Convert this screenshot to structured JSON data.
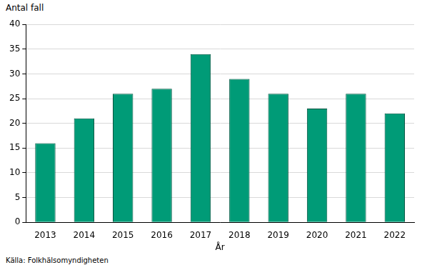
{
  "chart_data": {
    "type": "bar",
    "y_label": "Antal fall",
    "x_label": "År",
    "source": "Källa: Folkhälsomyndigheten",
    "categories": [
      "2013",
      "2014",
      "2015",
      "2016",
      "2017",
      "2018",
      "2019",
      "2020",
      "2021",
      "2022"
    ],
    "values": [
      16,
      21,
      26,
      27,
      34,
      29,
      26,
      23,
      26,
      22
    ],
    "color": "#009b77",
    "ylim": [
      0,
      40
    ],
    "yticks": [
      0,
      5,
      10,
      15,
      20,
      25,
      30,
      35,
      40
    ],
    "grid": true
  }
}
